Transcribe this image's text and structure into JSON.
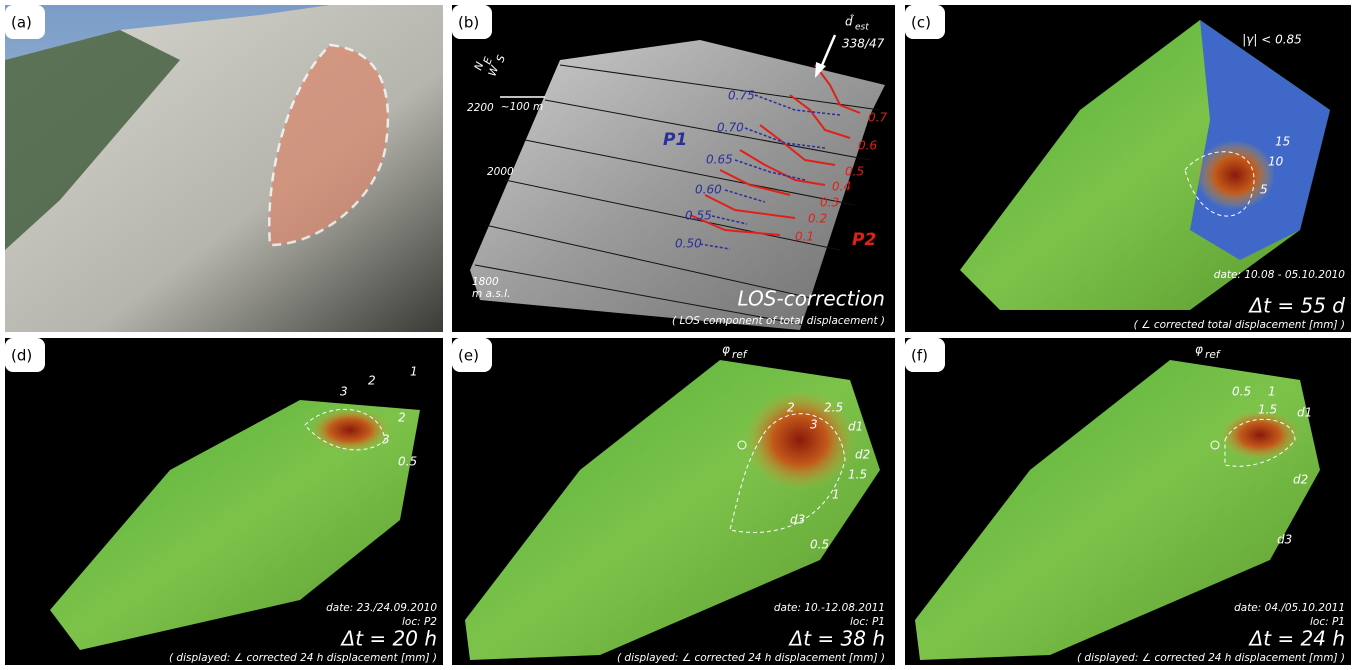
{
  "panels": [
    {
      "label": "(a)"
    },
    {
      "label": "(b)",
      "compass": [
        "N",
        "E",
        "S",
        "W"
      ],
      "scale": "~100 m",
      "elevations": [
        "2200",
        "2000",
        "1800"
      ],
      "unit": "m a.s.l.",
      "points": [
        "P1",
        "P2"
      ],
      "direction_symbol": "d̂",
      "direction_subscript": "est",
      "direction": "338/47",
      "blue_contours": [
        "0.75",
        "0.70",
        "0.65",
        "0.60",
        "0.55",
        "0.50"
      ],
      "red_contours": [
        "0.7",
        "0.6",
        "0.5",
        "0.4",
        "0.3",
        "0.2",
        "0.1"
      ],
      "title": "LOS-correction",
      "caption": "( LOS component of total displacement )"
    },
    {
      "label": "(c)",
      "coherence": "|γ| < 0.85",
      "contours": [
        "15",
        "10",
        "5"
      ],
      "date": "date: 10.08 - 05.10.2010",
      "delta": "Δt = 55 d",
      "caption": "( ∠ corrected total displacement [mm] )"
    },
    {
      "label": "(d)",
      "contours": [
        "1",
        "2",
        "3",
        "2",
        "3",
        "0.5"
      ],
      "date": "date: 23./24.09.2010",
      "location": "loc: P2",
      "delta": "Δt = 20 h",
      "caption": "( displayed: ∠ corrected 24 h displacement [mm] )"
    },
    {
      "label": "(e)",
      "reference_symbol": "φ",
      "reference_subscript": "ref",
      "contours": [
        "2",
        "2.5",
        "3",
        "d1",
        "d2",
        "1.5",
        "1",
        "d3",
        "0.5"
      ],
      "date": "date: 10.-12.08.2011",
      "location": "loc: P1",
      "delta": "Δt = 38 h",
      "caption": "( displayed: ∠ corrected 24 h displacement [mm] )"
    },
    {
      "label": "(f)",
      "reference_symbol": "φ",
      "reference_subscript": "ref",
      "contours": [
        "0.5",
        "1",
        "1.5",
        "d1",
        "d2",
        "d3"
      ],
      "date": "date: 04./05.10.2011",
      "location": "loc: P1",
      "delta": "Δt = 24 h",
      "caption": "( displayed: ∠ corrected 24 h displacement [mm] )"
    }
  ]
}
